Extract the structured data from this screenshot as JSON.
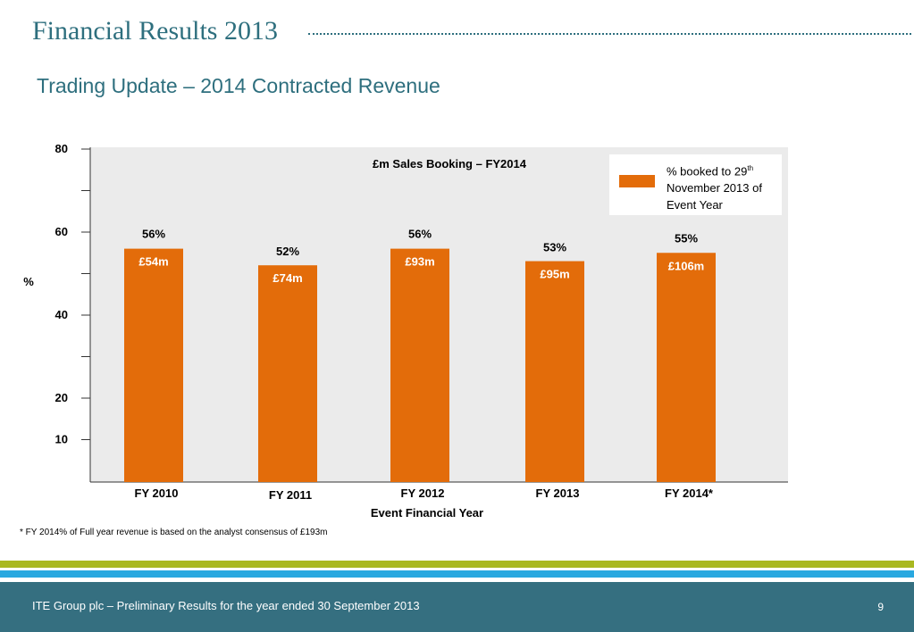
{
  "header": {
    "title": "Financial Results 2013",
    "subtitle": "Trading Update – 2014 Contracted Revenue"
  },
  "legend": {
    "label_pre": "% booked to 29",
    "label_sup": "th",
    "label_post": " November 2013 of Event Year"
  },
  "chart_data": {
    "type": "bar",
    "title": "£m Sales Booking – FY2014",
    "xlabel": "Event Financial Year",
    "ylabel": "%",
    "ylim": [
      0,
      80
    ],
    "y_ticks": [
      "80",
      "60",
      "40",
      "20",
      "10"
    ],
    "categories": [
      "FY 2010",
      "FY 2011",
      "FY 2012",
      "FY 2013",
      "FY 2014*"
    ],
    "series": [
      {
        "name": "% booked to 29th November 2013 of Event Year",
        "values": [
          56,
          52,
          56,
          53,
          55
        ],
        "value_labels": [
          "56%",
          "52%",
          "56%",
          "53%",
          "55%"
        ],
        "inner_labels": [
          "£54m",
          "£74m",
          "£93m",
          "£95m",
          "£106m"
        ]
      }
    ],
    "legend_position": "top-right",
    "grid": false,
    "colors": {
      "bar": "#e36c0a",
      "plot_bg": "#ebebeb",
      "inner_label": "#ffffff"
    }
  },
  "footnote": "* FY 2014% of Full year revenue is based on the analyst consensus of £193m",
  "footer": {
    "text": "ITE Group plc – Preliminary Results for the year ended 30 September 2013",
    "page": "9"
  },
  "colors": {
    "accent": "#2e6f7e",
    "stripe_green": "#a9b820",
    "stripe_blue": "#29a8e0",
    "footer_bg": "#356f80"
  }
}
